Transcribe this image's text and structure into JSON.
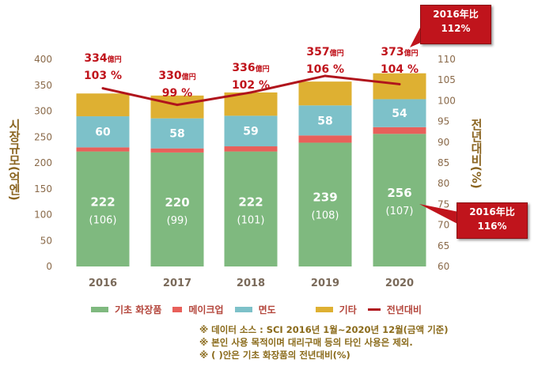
{
  "chart_data": {
    "type": "bar-stacked+line",
    "categories": [
      "2016",
      "2017",
      "2018",
      "2019",
      "2020"
    ],
    "series": [
      {
        "name": "기초 화장품",
        "type": "bar",
        "color": "#7fb97f",
        "values": [
          222,
          220,
          222,
          239,
          256
        ],
        "labels": [
          "222",
          "220",
          "222",
          "239",
          "256"
        ],
        "sublabels": [
          "(106)",
          "(99)",
          "(101)",
          "(108)",
          "(107)"
        ]
      },
      {
        "name": "메이크업",
        "type": "bar",
        "color": "#e8605a",
        "values": [
          8,
          8,
          10,
          14,
          13
        ]
      },
      {
        "name": "면도",
        "type": "bar",
        "color": "#7dc1c9",
        "values": [
          60,
          58,
          59,
          58,
          54
        ],
        "labels": [
          "60",
          "58",
          "59",
          "58",
          "54"
        ]
      },
      {
        "name": "기타",
        "type": "bar",
        "color": "#deb032",
        "values": [
          44,
          44,
          45,
          46,
          50
        ]
      },
      {
        "name": "전년대비",
        "type": "line",
        "axis": "right",
        "color": "#b0141c",
        "values": [
          103,
          99,
          102,
          106,
          104
        ]
      }
    ],
    "totals": [
      "334",
      "330",
      "336",
      "357",
      "373"
    ],
    "total_unit": "億円",
    "pct_labels": [
      "103 %",
      "99 %",
      "102 %",
      "106 %",
      "104 %"
    ],
    "ylabel": "시장규모(억엔)",
    "y2label": "전년대비(%)",
    "ylim": [
      0,
      400
    ],
    "yticks": [
      "0",
      "50",
      "100",
      "150",
      "200",
      "250",
      "300",
      "350",
      "400"
    ],
    "y2lim": [
      60,
      110
    ],
    "y2ticks": [
      "60",
      "65",
      "70",
      "75",
      "80",
      "85",
      "90",
      "95",
      "100",
      "105",
      "110"
    ],
    "legend_position": "bottom",
    "grid": false
  },
  "callouts": [
    {
      "line1": "2016年比",
      "line2": "112%"
    },
    {
      "line1": "2016年比",
      "line2": "116%"
    }
  ],
  "notes": [
    "※ 데이터 소스 : SCI    2016년 1월~2020년 12월(금액 기준)",
    "※ 본인 사용 목적이며 대리구매 등의 타인 사용은 제외.",
    "※ ( )안은 기초 화장품의 전년대비(%)"
  ]
}
